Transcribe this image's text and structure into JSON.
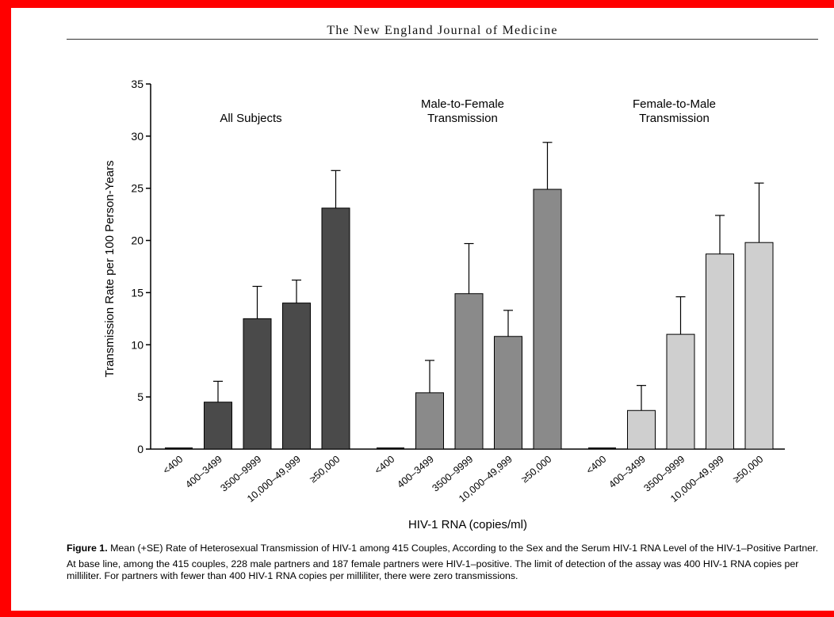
{
  "page": {
    "journal_title": "The New England Journal of Medicine",
    "figure_label": "Figure 1.",
    "figure_title": "Mean (+SE) Rate of Heterosexual Transmission of HIV-1 among 415 Couples, According to the Sex and the Serum HIV-1 RNA Level of the HIV-1–Positive Partner.",
    "figure_note": "At base line, among the 415 couples, 228 male partners and 187 female partners were HIV-1–positive. The limit of detection of the assay was 400 HIV-1 RNA copies per milliliter. For partners with fewer than 400 HIV-1 RNA copies per milliliter, there were zero transmissions."
  },
  "colors": {
    "frame": "#ff0000",
    "all_subjects": "#4a4a4a",
    "male_to_female": "#8a8a8a",
    "female_to_male": "#cfcfcf",
    "bar_outline": "#000000"
  },
  "chart_data": {
    "type": "bar",
    "xlabel": "HIV-1 RNA (copies/ml)",
    "ylabel": "Transmission Rate per 100 Person-Years",
    "ylim": [
      0,
      35
    ],
    "yticks": [
      0,
      5,
      10,
      15,
      20,
      25,
      30,
      35
    ],
    "error_bars": "+SE",
    "grid": false,
    "legend": "none",
    "categories": [
      "<400",
      "400–3499",
      "3500–9999",
      "10,000–49,999",
      "≥50,000"
    ],
    "groups": [
      {
        "title": [
          "All Subjects"
        ],
        "color": "#4a4a4a",
        "values": [
          0,
          4.5,
          12.5,
          14.0,
          23.1
        ],
        "errors": [
          0,
          2.0,
          3.1,
          2.2,
          3.6
        ]
      },
      {
        "title": [
          "Male-to-Female",
          "Transmission"
        ],
        "color": "#8a8a8a",
        "values": [
          0,
          5.4,
          14.9,
          10.8,
          24.9
        ],
        "errors": [
          0,
          3.1,
          4.8,
          2.5,
          4.5
        ]
      },
      {
        "title": [
          "Female-to-Male",
          "Transmission"
        ],
        "color": "#cfcfcf",
        "values": [
          0,
          3.7,
          11.0,
          18.7,
          19.8
        ],
        "errors": [
          0,
          2.4,
          3.6,
          3.7,
          5.7
        ]
      }
    ]
  }
}
